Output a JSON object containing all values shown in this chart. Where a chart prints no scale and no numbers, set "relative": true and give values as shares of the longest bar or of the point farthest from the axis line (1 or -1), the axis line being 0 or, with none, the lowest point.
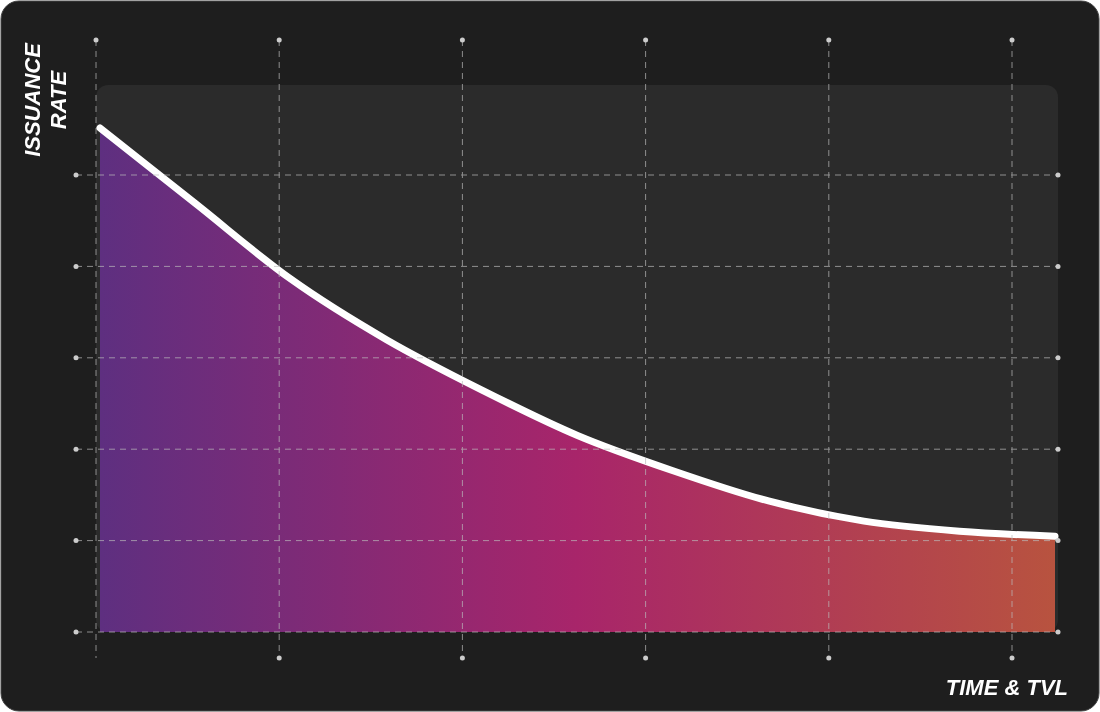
{
  "chart_data": {
    "type": "area",
    "relative": true,
    "xlabel": "TIME & TVL",
    "ylabel": "ISSUANCE RATE",
    "grid": true,
    "categories": [
      null,
      null,
      null,
      null,
      null,
      null,
      null,
      null,
      null,
      null,
      null
    ],
    "series": [
      {
        "color": "#ffffff",
        "values": [
          1,
          0.85,
          0.7,
          0.58,
          0.48,
          0.39,
          0.32,
          0.26,
          0.22,
          0.2,
          0.19
        ]
      }
    ]
  }
}
